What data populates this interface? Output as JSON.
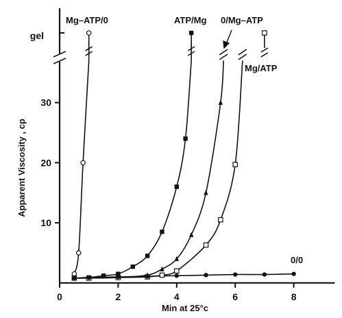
{
  "chart_data": {
    "type": "line",
    "xlabel": "Min at 25°c",
    "ylabel": "Apparent Viscosity , cp",
    "xlim": [
      0,
      9.4
    ],
    "ylim": [
      0,
      40
    ],
    "x_ticks": [
      0,
      2,
      4,
      6,
      8
    ],
    "y_ticks": [
      10,
      20,
      30
    ],
    "gel_label": "gel",
    "y_axis_break": true,
    "series": [
      {
        "name": "Mg–ATP/0",
        "marker": "open-circle",
        "points": [
          [
            0.5,
            1.5
          ],
          [
            0.65,
            5
          ],
          [
            0.8,
            20
          ],
          [
            1.0,
            37
          ],
          [
            1.0,
            "gel"
          ]
        ]
      },
      {
        "name": "ATP/Mg",
        "marker": "filled-square",
        "points": [
          [
            0.5,
            0.8
          ],
          [
            1.0,
            0.9
          ],
          [
            1.5,
            1.2
          ],
          [
            2.0,
            1.5
          ],
          [
            2.5,
            2.7
          ],
          [
            3.0,
            4.5
          ],
          [
            3.5,
            8.5
          ],
          [
            4.0,
            16
          ],
          [
            4.3,
            24
          ],
          [
            4.5,
            37
          ],
          [
            4.5,
            "gel"
          ]
        ]
      },
      {
        "name": "0/Mg–ATP",
        "marker": "filled-triangle",
        "points": [
          [
            0.5,
            0.8
          ],
          [
            1.0,
            0.8
          ],
          [
            2.0,
            0.9
          ],
          [
            3.0,
            1.3
          ],
          [
            3.5,
            2.3
          ],
          [
            4.0,
            4.0
          ],
          [
            4.5,
            8.0
          ],
          [
            5.0,
            15
          ],
          [
            5.5,
            30
          ],
          [
            5.6,
            37
          ],
          [
            7.0,
            "gel"
          ]
        ]
      },
      {
        "name": "Mg/ATP",
        "marker": "open-square",
        "points": [
          [
            0.5,
            0.8
          ],
          [
            1.0,
            0.8
          ],
          [
            2.0,
            0.9
          ],
          [
            3.0,
            1.0
          ],
          [
            3.5,
            1.3
          ],
          [
            4.0,
            2.0
          ],
          [
            5.0,
            6.3
          ],
          [
            5.5,
            10.5
          ],
          [
            6.0,
            19.7
          ],
          [
            6.25,
            37
          ],
          [
            7.0,
            "gel"
          ]
        ]
      },
      {
        "name": "0/0",
        "marker": "filled-circle",
        "points": [
          [
            0.5,
            0.8
          ],
          [
            1.0,
            0.9
          ],
          [
            2.0,
            1.0
          ],
          [
            3.0,
            1.1
          ],
          [
            4.0,
            1.2
          ],
          [
            5.0,
            1.3
          ],
          [
            6.0,
            1.4
          ],
          [
            7.0,
            1.4
          ],
          [
            8.0,
            1.5
          ]
        ]
      }
    ]
  }
}
